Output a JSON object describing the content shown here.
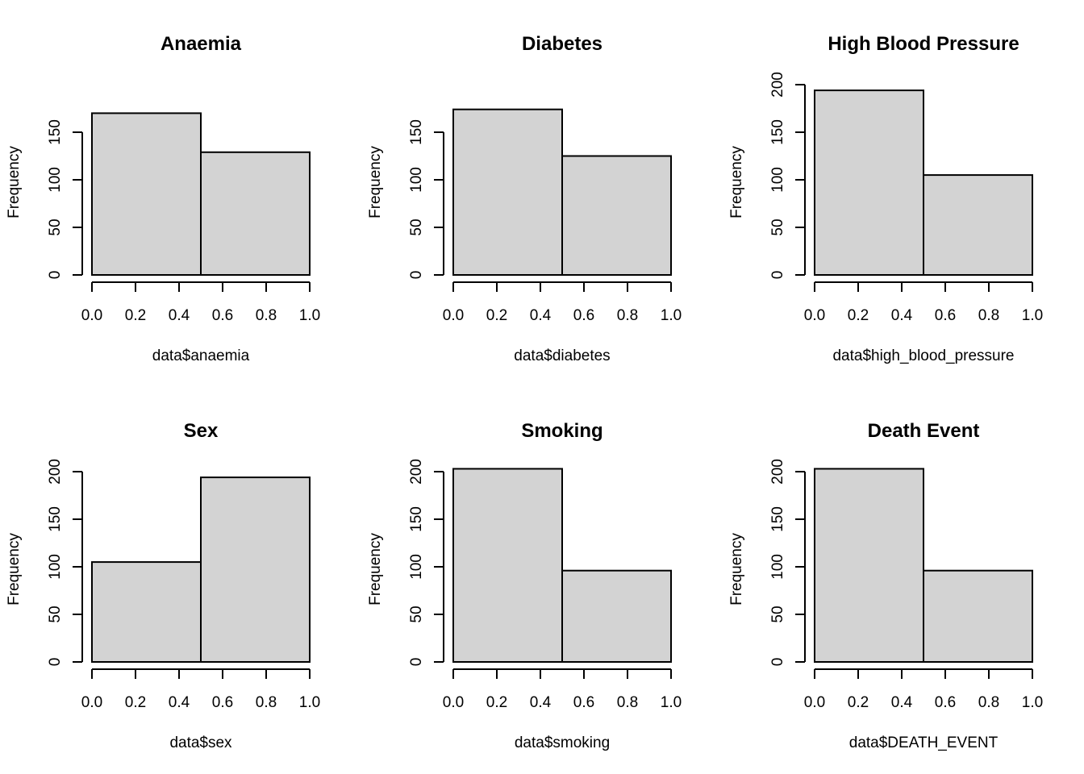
{
  "bar_fill": "#d3d3d3",
  "line_color": "#000000",
  "chart_data": [
    {
      "type": "bar",
      "title": "Anaemia",
      "xlabel": "data$anaemia",
      "ylabel": "Frequency",
      "bins": [
        [
          0.0,
          0.5
        ],
        [
          0.5,
          1.0
        ]
      ],
      "values": [
        170,
        129
      ],
      "xlim": [
        0,
        1
      ],
      "xticks": [
        "0.0",
        "0.2",
        "0.4",
        "0.6",
        "0.8",
        "1.0"
      ],
      "yticks": [
        "0",
        "50",
        "100",
        "150"
      ],
      "ylim": [
        0,
        170
      ],
      "grid": false,
      "legend": "none"
    },
    {
      "type": "bar",
      "title": "Diabetes",
      "xlabel": "data$diabetes",
      "ylabel": "Frequency",
      "bins": [
        [
          0.0,
          0.5
        ],
        [
          0.5,
          1.0
        ]
      ],
      "values": [
        174,
        125
      ],
      "xlim": [
        0,
        1
      ],
      "xticks": [
        "0.0",
        "0.2",
        "0.4",
        "0.6",
        "0.8",
        "1.0"
      ],
      "yticks": [
        "0",
        "50",
        "100",
        "150"
      ],
      "ylim": [
        0,
        174
      ],
      "grid": false,
      "legend": "none"
    },
    {
      "type": "bar",
      "title": "High Blood Pressure",
      "xlabel": "data$high_blood_pressure",
      "ylabel": "Frequency",
      "bins": [
        [
          0.0,
          0.5
        ],
        [
          0.5,
          1.0
        ]
      ],
      "values": [
        194,
        105
      ],
      "xlim": [
        0,
        1
      ],
      "xticks": [
        "0.0",
        "0.2",
        "0.4",
        "0.6",
        "0.8",
        "1.0"
      ],
      "yticks": [
        "0",
        "50",
        "100",
        "150",
        "200"
      ],
      "ylim": [
        0,
        200
      ],
      "grid": false,
      "legend": "none"
    },
    {
      "type": "bar",
      "title": "Sex",
      "xlabel": "data$sex",
      "ylabel": "Frequency",
      "bins": [
        [
          0.0,
          0.5
        ],
        [
          0.5,
          1.0
        ]
      ],
      "values": [
        105,
        194
      ],
      "xlim": [
        0,
        1
      ],
      "xticks": [
        "0.0",
        "0.2",
        "0.4",
        "0.6",
        "0.8",
        "1.0"
      ],
      "yticks": [
        "0",
        "50",
        "100",
        "150",
        "200"
      ],
      "ylim": [
        0,
        200
      ],
      "grid": false,
      "legend": "none"
    },
    {
      "type": "bar",
      "title": "Smoking",
      "xlabel": "data$smoking",
      "ylabel": "Frequency",
      "bins": [
        [
          0.0,
          0.5
        ],
        [
          0.5,
          1.0
        ]
      ],
      "values": [
        203,
        96
      ],
      "xlim": [
        0,
        1
      ],
      "xticks": [
        "0.0",
        "0.2",
        "0.4",
        "0.6",
        "0.8",
        "1.0"
      ],
      "yticks": [
        "0",
        "50",
        "100",
        "150",
        "200"
      ],
      "ylim": [
        0,
        203
      ],
      "grid": false,
      "legend": "none"
    },
    {
      "type": "bar",
      "title": "Death Event",
      "xlabel": "data$DEATH_EVENT",
      "ylabel": "Frequency",
      "bins": [
        [
          0.0,
          0.5
        ],
        [
          0.5,
          1.0
        ]
      ],
      "values": [
        203,
        96
      ],
      "xlim": [
        0,
        1
      ],
      "xticks": [
        "0.0",
        "0.2",
        "0.4",
        "0.6",
        "0.8",
        "1.0"
      ],
      "yticks": [
        "0",
        "50",
        "100",
        "150",
        "200"
      ],
      "ylim": [
        0,
        203
      ],
      "grid": false,
      "legend": "none"
    }
  ]
}
